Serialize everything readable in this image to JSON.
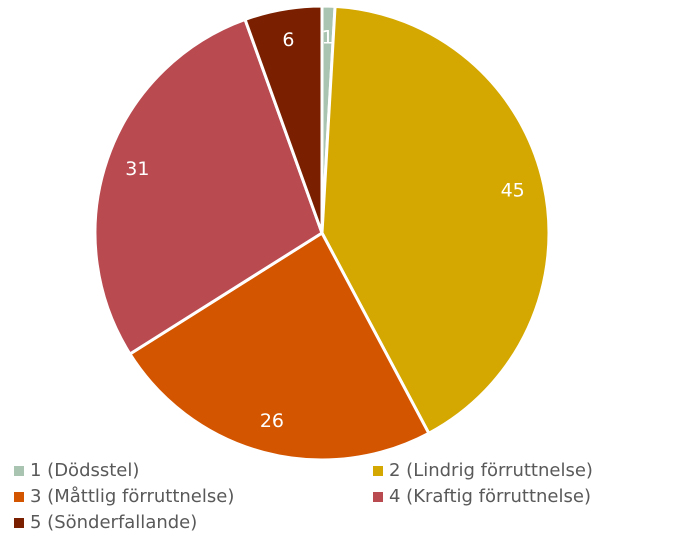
{
  "chart_data": {
    "type": "pie",
    "categories": [
      "1 (Dödsstel)",
      "2 (Lindrig förruttnelse)",
      "3 (Måttlig förruttnelse)",
      "4 (Kraftig förruttnelse)",
      "5 (Sönderfallande)"
    ],
    "values": [
      1,
      45,
      26,
      31,
      6
    ],
    "colors": [
      "#a9c4b0",
      "#d4a800",
      "#d45500",
      "#b84a50",
      "#7a2000"
    ],
    "legend": "bottom"
  }
}
